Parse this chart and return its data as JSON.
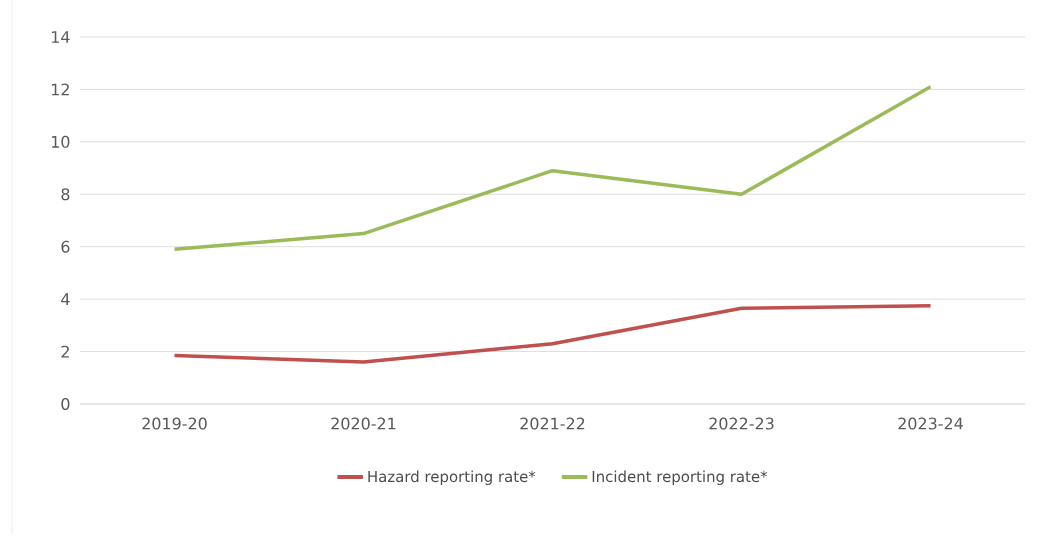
{
  "chart_data": {
    "type": "line",
    "categories": [
      "2019-20",
      "2020-21",
      "2021-22",
      "2022-23",
      "2023-24"
    ],
    "series": [
      {
        "name": "Hazard reporting rate*",
        "color": "#c0504d",
        "values": [
          1.85,
          1.6,
          2.3,
          3.65,
          3.75
        ]
      },
      {
        "name": "Incident reporting rate*",
        "color": "#9bbb59",
        "values": [
          5.9,
          6.5,
          8.9,
          8.0,
          12.1
        ]
      }
    ],
    "ylim": [
      0,
      14
    ],
    "yticks": [
      0,
      2,
      4,
      6,
      8,
      10,
      12,
      14
    ],
    "grid": "y",
    "legend": "bottom",
    "marker": "none",
    "line_style": "solid"
  }
}
